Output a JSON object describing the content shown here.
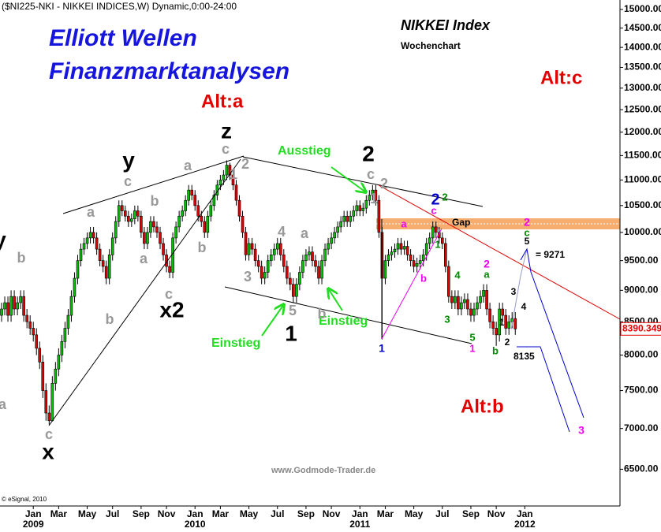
{
  "header": "($NI225-NKI - NIKKEI INDICES,W) Dynamic,0:00-24:00",
  "brand": {
    "line1": "Elliott Wellen",
    "line2": "Finanzmarktanalysen"
  },
  "instrument": {
    "title": "NIKKEI Index",
    "subtitle": "Wochenchart"
  },
  "scenarios": {
    "alt_a": "Alt:a",
    "alt_b": "Alt:b",
    "alt_c": "Alt:c"
  },
  "signals": {
    "exit": "Ausstieg",
    "entry_1": "Einstieg",
    "entry_2": "Einstieg"
  },
  "gap_label": "Gap",
  "target_label": "= 9271",
  "low_label": "8135",
  "source": "www.Godmode-Trader.de",
  "copyright": "© eSignal, 2010",
  "wave_labels": [
    {
      "text": "y",
      "color": "#000000"
    },
    {
      "text": "b",
      "color": "#999999"
    },
    {
      "text": "a",
      "color": "#999999"
    },
    {
      "text": "c",
      "color": "#999999"
    },
    {
      "text": "x",
      "color": "#000000"
    },
    {
      "text": "a",
      "color": "#999999"
    },
    {
      "text": "b",
      "color": "#999999"
    },
    {
      "text": "y",
      "color": "#000000"
    },
    {
      "text": "c",
      "color": "#999999"
    },
    {
      "text": "b",
      "color": "#999999"
    },
    {
      "text": "a",
      "color": "#999999"
    },
    {
      "text": "c",
      "color": "#999999"
    },
    {
      "text": "x2",
      "color": "#000000"
    },
    {
      "text": "a",
      "color": "#999999"
    },
    {
      "text": "b",
      "color": "#999999"
    },
    {
      "text": "z",
      "color": "#000000"
    },
    {
      "text": "c",
      "color": "#999999"
    },
    {
      "text": "2",
      "color": "#999999"
    },
    {
      "text": "1",
      "color": "#999999"
    },
    {
      "text": "3",
      "color": "#999999"
    },
    {
      "text": "4",
      "color": "#999999"
    },
    {
      "text": "a",
      "color": "#999999"
    },
    {
      "text": "5",
      "color": "#999999"
    },
    {
      "text": "b",
      "color": "#999999"
    },
    {
      "text": "1",
      "color": "#000000"
    },
    {
      "text": "2",
      "color": "#000000"
    },
    {
      "text": "c",
      "color": "#999999"
    },
    {
      "text": "2",
      "color": "#999999"
    },
    {
      "text": "1",
      "color": "#999999"
    },
    {
      "text": "1",
      "color": "#0000cc"
    },
    {
      "text": "a",
      "color": "#ee00ee"
    },
    {
      "text": "c",
      "color": "#ee00ee"
    },
    {
      "text": "2",
      "color": "#0000cc"
    },
    {
      "text": "2",
      "color": "#008800"
    },
    {
      "text": "1",
      "color": "#008800"
    },
    {
      "text": "b",
      "color": "#ee00ee"
    },
    {
      "text": "4",
      "color": "#008800"
    },
    {
      "text": "3",
      "color": "#008800"
    },
    {
      "text": "2",
      "color": "#ee00ee"
    },
    {
      "text": "a",
      "color": "#008800"
    },
    {
      "text": "5",
      "color": "#008800"
    },
    {
      "text": "1",
      "color": "#ee00ee"
    },
    {
      "text": "b",
      "color": "#008800"
    },
    {
      "text": "1",
      "color": "#000000"
    },
    {
      "text": "2",
      "color": "#000000"
    },
    {
      "text": "3",
      "color": "#000000"
    },
    {
      "text": "4",
      "color": "#000000"
    },
    {
      "text": "2",
      "color": "#ee00ee"
    },
    {
      "text": "c",
      "color": "#008800"
    },
    {
      "text": "5",
      "color": "#000000"
    },
    {
      "text": "3",
      "color": "#ee00ee"
    }
  ],
  "chart_data": {
    "type": "candlestick",
    "log": true,
    "up_color": "#00c000",
    "down_color": "#e00000",
    "ylim": [
      6080,
      15260
    ],
    "yticks": [
      {
        "value": 15000,
        "label": "15000.00"
      },
      {
        "value": 14500,
        "label": "14500.00"
      },
      {
        "value": 14000,
        "label": "14000.00"
      },
      {
        "value": 13500,
        "label": "13500.00"
      },
      {
        "value": 13000,
        "label": "13000.00"
      },
      {
        "value": 12500,
        "label": "12500.00"
      },
      {
        "value": 12000,
        "label": "12000.00"
      },
      {
        "value": 11500,
        "label": "11500.00"
      },
      {
        "value": 11000,
        "label": "11000.00"
      },
      {
        "value": 10500,
        "label": "10500.00"
      },
      {
        "value": 10000,
        "label": "10000.00"
      },
      {
        "value": 9500,
        "label": "9500.00"
      },
      {
        "value": 9000,
        "label": "9000.00"
      },
      {
        "value": 8500,
        "label": "8500.00"
      },
      {
        "value": 8000,
        "label": "8000.00"
      },
      {
        "value": 7500,
        "label": "7500.00"
      },
      {
        "value": 7000,
        "label": "7000.00"
      },
      {
        "value": 6500,
        "label": "6500.00"
      }
    ],
    "last_price": 8390.349,
    "categories": [
      null,
      null,
      null,
      null,
      null,
      null,
      null,
      null,
      null,
      null,
      "Jan 2009",
      null,
      null,
      null,
      null,
      null,
      null,
      null,
      "Mar",
      null,
      null,
      null,
      null,
      null,
      null,
      null,
      null,
      "May",
      null,
      null,
      null,
      null,
      null,
      null,
      null,
      "Jul",
      null,
      null,
      null,
      null,
      null,
      null,
      null,
      null,
      "Sep",
      null,
      null,
      null,
      null,
      null,
      null,
      null,
      "Nov",
      null,
      null,
      null,
      null,
      null,
      null,
      null,
      null,
      "Jan 2010",
      null,
      null,
      null,
      null,
      null,
      null,
      null,
      "Mar",
      null,
      null,
      null,
      null,
      null,
      null,
      null,
      null,
      "May",
      null,
      null,
      null,
      null,
      null,
      null,
      null,
      null,
      "Jul",
      null,
      null,
      null,
      null,
      null,
      null,
      null,
      null,
      "Sep",
      null,
      null,
      null,
      null,
      null,
      null,
      null,
      "Nov",
      null,
      null,
      null,
      null,
      null,
      null,
      null,
      null,
      "Jan 2011",
      null,
      null,
      null,
      null,
      null,
      null,
      null,
      "Mar",
      null,
      null,
      null,
      null,
      null,
      null,
      null,
      null,
      "May",
      null,
      null,
      null,
      null,
      null,
      null,
      null,
      null,
      "Jul",
      null,
      null,
      null,
      null,
      null,
      null,
      null,
      null,
      "Sep",
      null,
      null,
      null,
      null,
      null,
      null,
      null,
      "Nov",
      null,
      null,
      null,
      null,
      null,
      null,
      null,
      null,
      "Jan 2012"
    ],
    "open": [
      8600,
      8700,
      8800,
      8600,
      8900,
      8700,
      8800,
      8900,
      8600,
      8500,
      8400,
      8300,
      8100,
      7900,
      7500,
      7200,
      7100,
      7600,
      7800,
      8000,
      8200,
      8400,
      8600,
      8900,
      9200,
      9500,
      9700,
      9800,
      9900,
      10000,
      9900,
      9700,
      9500,
      9400,
      9200,
      9600,
      9900,
      10200,
      10500,
      10400,
      10300,
      10200,
      10250,
      10400,
      10300,
      10000,
      9800,
      10000,
      10200,
      10100,
      10000,
      9800,
      9600,
      9400,
      9300,
      9900,
      10100,
      10300,
      10400,
      10600,
      10800,
      10700,
      10500,
      10300,
      10200,
      10000,
      10300,
      10500,
      10700,
      10900,
      11000,
      11100,
      11300,
      11100,
      10900,
      10600,
      10300,
      10000,
      9600,
      9800,
      9700,
      9500,
      9400,
      9200,
      9300,
      9500,
      9600,
      9700,
      9800,
      9600,
      9400,
      9200,
      9100,
      8900,
      9100,
      9300,
      9500,
      9600,
      9650,
      9500,
      9400,
      9200,
      9500,
      9700,
      9800,
      9900,
      10000,
      10100,
      10200,
      10300,
      10200,
      10300,
      10400,
      10500,
      10400,
      10450,
      10600,
      10700,
      10800,
      10600,
      10000,
      9200,
      9500,
      9600,
      9650,
      9700,
      9800,
      9700,
      9750,
      9600,
      9500,
      9400,
      9450,
      9500,
      9600,
      9800,
      9900,
      10100,
      10000,
      9900,
      9800,
      9400,
      8900,
      8800,
      8900,
      8700,
      8800,
      8850,
      8700,
      8600,
      8700,
      8800,
      8900,
      9000,
      8700,
      8500,
      8400,
      8300,
      8700,
      8600,
      8400,
      8500,
      8550,
      null,
      null,
      null
    ],
    "high": [
      8800,
      8900,
      8900,
      9000,
      9000,
      8900,
      9000,
      9000,
      8700,
      8600,
      8500,
      8400,
      8200,
      8000,
      7600,
      7300,
      7700,
      7900,
      8100,
      8300,
      8500,
      8700,
      9000,
      9300,
      9600,
      9800,
      9900,
      10000,
      10100,
      10100,
      10000,
      9800,
      9600,
      9500,
      9700,
      10000,
      10300,
      10600,
      10600,
      10500,
      10400,
      10350,
      10500,
      10500,
      10400,
      10100,
      10100,
      10300,
      10300,
      10200,
      10100,
      9900,
      9700,
      9500,
      10000,
      10200,
      10400,
      10500,
      10700,
      10900,
      10900,
      10800,
      10600,
      10400,
      10300,
      10400,
      10600,
      10800,
      11000,
      11100,
      11200,
      11400,
      11350,
      11200,
      11000,
      10700,
      10400,
      10100,
      9900,
      9900,
      9800,
      9600,
      9500,
      9400,
      9600,
      9700,
      9800,
      9900,
      9900,
      9700,
      9500,
      9300,
      9200,
      9200,
      9400,
      9600,
      9700,
      9750,
      9750,
      9600,
      9500,
      9600,
      9800,
      9900,
      10000,
      10100,
      10200,
      10300,
      10400,
      10400,
      10400,
      10500,
      10600,
      10600,
      10550,
      10700,
      10800,
      10900,
      10900,
      10700,
      10100,
      9600,
      9700,
      9750,
      9800,
      9900,
      9900,
      9850,
      9850,
      9700,
      9600,
      9550,
      9600,
      9700,
      9900,
      10000,
      10200,
      10200,
      10100,
      10000,
      9900,
      9500,
      9000,
      9000,
      9000,
      8900,
      8950,
      8950,
      8800,
      8800,
      8900,
      9000,
      9100,
      9100,
      8800,
      8600,
      8500,
      8800,
      8800,
      8700,
      8600,
      8650,
      8650,
      null,
      null,
      null
    ],
    "low": [
      8500,
      8600,
      8500,
      8500,
      8600,
      8600,
      8700,
      8500,
      8400,
      8300,
      8200,
      8000,
      7800,
      7400,
      7100,
      7050,
      7090,
      7500,
      7700,
      7900,
      8100,
      8300,
      8500,
      8800,
      9100,
      9400,
      9600,
      9700,
      9800,
      9800,
      9600,
      9400,
      9300,
      9100,
      9100,
      9500,
      9800,
      10100,
      10300,
      10200,
      10100,
      10100,
      10150,
      10200,
      9900,
      9700,
      9700,
      9900,
      10000,
      9900,
      9700,
      9500,
      9300,
      9200,
      9200,
      9800,
      10000,
      10200,
      10300,
      10500,
      10600,
      10400,
      10200,
      10100,
      9900,
      9900,
      10200,
      10400,
      10600,
      10800,
      10900,
      11000,
      11000,
      10800,
      10500,
      10200,
      9900,
      9500,
      9500,
      9600,
      9400,
      9300,
      9100,
      9100,
      9200,
      9400,
      9500,
      9600,
      9500,
      9300,
      9100,
      9000,
      8800,
      8800,
      9000,
      9200,
      9400,
      9500,
      9400,
      9300,
      9100,
      9100,
      9400,
      9600,
      9700,
      9800,
      9900,
      10000,
      10100,
      10100,
      10100,
      10200,
      10300,
      10300,
      10300,
      10350,
      10500,
      10600,
      10500,
      9900,
      8230,
      9100,
      9400,
      9500,
      9550,
      9600,
      9600,
      9600,
      9500,
      9400,
      9300,
      9300,
      9350,
      9400,
      9500,
      9700,
      9800,
      9900,
      9800,
      9700,
      9300,
      8800,
      8700,
      8700,
      8600,
      8600,
      8700,
      8600,
      8500,
      8500,
      8600,
      8700,
      8800,
      8600,
      8400,
      8300,
      8135,
      8200,
      8500,
      8300,
      8300,
      8400,
      8300,
      null,
      null,
      null
    ],
    "close": [
      8700,
      8800,
      8600,
      8900,
      8700,
      8800,
      8900,
      8600,
      8500,
      8400,
      8300,
      8100,
      7900,
      7500,
      7200,
      7100,
      7600,
      7800,
      8000,
      8200,
      8400,
      8600,
      8900,
      9200,
      9500,
      9700,
      9800,
      9900,
      10000,
      9900,
      9700,
      9500,
      9400,
      9200,
      9600,
      9900,
      10200,
      10500,
      10400,
      10300,
      10200,
      10250,
      10400,
      10300,
      10000,
      9800,
      10000,
      10200,
      10100,
      10000,
      9800,
      9600,
      9400,
      9300,
      9900,
      10100,
      10300,
      10400,
      10600,
      10800,
      10700,
      10500,
      10300,
      10200,
      10000,
      10300,
      10500,
      10700,
      10900,
      11000,
      11100,
      11300,
      11100,
      10900,
      10600,
      10300,
      10000,
      9600,
      9800,
      9700,
      9500,
      9400,
      9200,
      9300,
      9500,
      9600,
      9700,
      9800,
      9600,
      9400,
      9200,
      9100,
      8900,
      9100,
      9300,
      9500,
      9600,
      9650,
      9500,
      9400,
      9200,
      9500,
      9700,
      9800,
      9900,
      10000,
      10100,
      10200,
      10300,
      10200,
      10300,
      10400,
      10500,
      10400,
      10450,
      10600,
      10700,
      10800,
      10600,
      10000,
      9200,
      9500,
      9600,
      9650,
      9700,
      9800,
      9700,
      9750,
      9600,
      9500,
      9400,
      9450,
      9500,
      9600,
      9800,
      9900,
      10100,
      10000,
      9900,
      9800,
      9400,
      8900,
      8800,
      8900,
      8700,
      8800,
      8850,
      8700,
      8600,
      8700,
      8800,
      8900,
      9000,
      8700,
      8500,
      8400,
      8300,
      8700,
      8600,
      8400,
      8500,
      8550,
      8390,
      null,
      null,
      null
    ]
  }
}
